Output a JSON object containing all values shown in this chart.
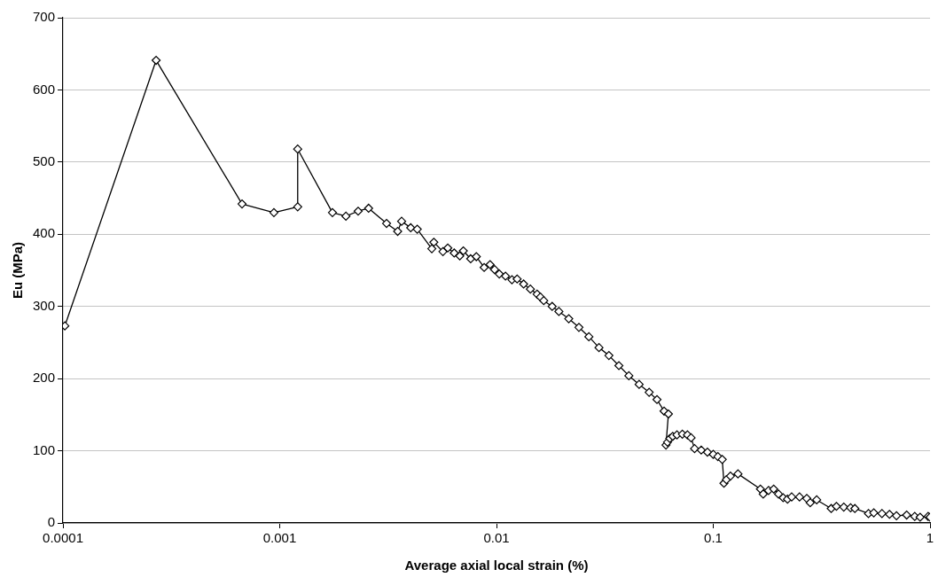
{
  "chart_data": {
    "type": "line",
    "xlabel": "Average axial local strain (%)",
    "ylabel": "Eu (MPa)",
    "xlim": [
      0.0001,
      1
    ],
    "xticks": [
      0.0001,
      0.001,
      0.01,
      0.1,
      1
    ],
    "ylim": [
      0,
      700
    ],
    "yticks": [
      0,
      100,
      200,
      300,
      400,
      500,
      600,
      700
    ],
    "log": "x",
    "grid": "y",
    "legend": false,
    "marker": "diamond",
    "line_style": "solid",
    "series": [
      {
        "color": "#000000",
        "x": [
          0.000102,
          0.000269,
          0.00067,
          0.00094,
          0.00121,
          0.00121,
          0.00175,
          0.00202,
          0.0023,
          0.00257,
          0.00311,
          0.0035,
          0.00365,
          0.00402,
          0.00431,
          0.00503,
          0.00514,
          0.00566,
          0.00596,
          0.00638,
          0.00677,
          0.00703,
          0.0076,
          0.00807,
          0.00877,
          0.00934,
          0.0098,
          0.0103,
          0.011,
          0.01178,
          0.01245,
          0.01334,
          0.01433,
          0.01539,
          0.01594,
          0.01652,
          0.01806,
          0.0194,
          0.02154,
          0.024,
          0.02668,
          0.0297,
          0.033,
          0.0367,
          0.0408,
          0.0455,
          0.0506,
          0.055,
          0.0593,
          0.0621,
          0.0605,
          0.0615,
          0.063,
          0.065,
          0.068,
          0.072,
          0.076,
          0.079,
          0.082,
          0.088,
          0.094,
          0.1,
          0.105,
          0.11,
          0.112,
          0.115,
          0.12,
          0.13,
          0.165,
          0.17,
          0.18,
          0.19,
          0.2,
          0.21,
          0.22,
          0.23,
          0.25,
          0.27,
          0.28,
          0.3,
          0.35,
          0.37,
          0.4,
          0.43,
          0.45,
          0.52,
          0.55,
          0.6,
          0.65,
          0.7,
          0.78,
          0.85,
          0.9,
          0.98,
          1.0
        ],
        "values": [
          273,
          641,
          442,
          430,
          438,
          518,
          430,
          425,
          432,
          436,
          415,
          404,
          418,
          409,
          407,
          380,
          389,
          376,
          381,
          374,
          370,
          377,
          366,
          369,
          354,
          358,
          351,
          345,
          342,
          337,
          338,
          331,
          324,
          317,
          313,
          308,
          300,
          293,
          283,
          271,
          258,
          243,
          232,
          218,
          204,
          192,
          181,
          171,
          155,
          151,
          108,
          112,
          117,
          120,
          122,
          123,
          122,
          118,
          103,
          101,
          98,
          95,
          92,
          88,
          55,
          60,
          65,
          68,
          47,
          40,
          45,
          47,
          40,
          35,
          33,
          36,
          36,
          34,
          28,
          32,
          20,
          23,
          22,
          21,
          20,
          13,
          14,
          13,
          12,
          10,
          11,
          9,
          8,
          9,
          8
        ]
      }
    ]
  }
}
